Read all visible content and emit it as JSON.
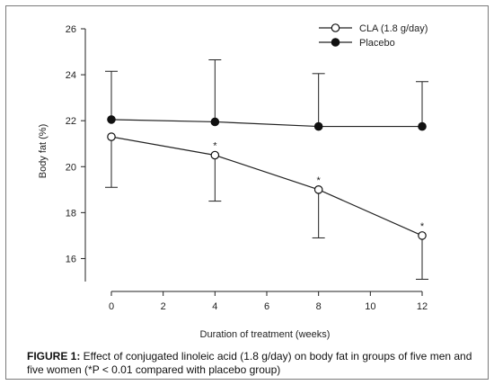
{
  "chart_data": {
    "type": "line",
    "xlabel": "Duration of treatment (weeks)",
    "ylabel": "Body fat (%)",
    "xlim": [
      0,
      12
    ],
    "ylim": [
      15,
      26
    ],
    "xticks": [
      0,
      2,
      4,
      6,
      8,
      10,
      12
    ],
    "yticks": [
      16,
      18,
      20,
      22,
      24,
      26
    ],
    "grid": false,
    "legend_position": "top-right",
    "series": [
      {
        "name": "CLA (1.8 g/day)",
        "marker": "open-circle",
        "x": [
          0,
          4,
          8,
          12
        ],
        "y": [
          21.3,
          20.5,
          19.0,
          17.0
        ],
        "error_lower": [
          19.1,
          18.5,
          16.9,
          15.1
        ],
        "significant": [
          false,
          true,
          true,
          true
        ]
      },
      {
        "name": "Placebo",
        "marker": "filled-circle",
        "x": [
          0,
          4,
          8,
          12
        ],
        "y": [
          22.05,
          21.95,
          21.75,
          21.75
        ],
        "error_upper": [
          24.15,
          24.65,
          24.05,
          23.7
        ]
      }
    ],
    "annotation_symbol": "*"
  },
  "caption": {
    "label": "FIGURE 1:",
    "text": " Effect of conjugated linoleic acid (1.8 g/day) on body fat in groups of five men and five women (*P < 0.01 compared with placebo group)"
  }
}
